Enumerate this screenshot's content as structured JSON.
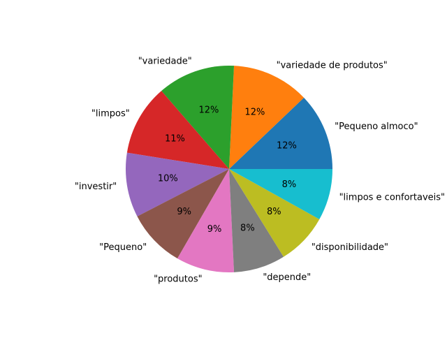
{
  "chart_data": {
    "type": "pie",
    "start_angle_deg": 0,
    "direction": "counterclockwise",
    "slices": [
      {
        "label": "\"Pequeno almoco\"",
        "value": 12,
        "pct_label": "12%",
        "color": "#1f77b4"
      },
      {
        "label": "\"variedade de produtos\"",
        "value": 12,
        "pct_label": "12%",
        "color": "#ff7f0e"
      },
      {
        "label": "\"variedade\"",
        "value": 12,
        "pct_label": "12%",
        "color": "#2ca02c"
      },
      {
        "label": "\"limpos\"",
        "value": 11,
        "pct_label": "11%",
        "color": "#d62728"
      },
      {
        "label": "\"investir\"",
        "value": 10,
        "pct_label": "10%",
        "color": "#9467bd"
      },
      {
        "label": "\"Pequeno\"",
        "value": 9,
        "pct_label": "9%",
        "color": "#8c564b"
      },
      {
        "label": "\"produtos\"",
        "value": 9,
        "pct_label": "9%",
        "color": "#e377c2"
      },
      {
        "label": "\"depende\"",
        "value": 8,
        "pct_label": "8%",
        "color": "#7f7f7f"
      },
      {
        "label": "\"disponibilidade\"",
        "value": 8,
        "pct_label": "8%",
        "color": "#bcbd22"
      },
      {
        "label": "\"limpos e confortaveis\"",
        "value": 8,
        "pct_label": "8%",
        "color": "#17becf"
      }
    ]
  }
}
